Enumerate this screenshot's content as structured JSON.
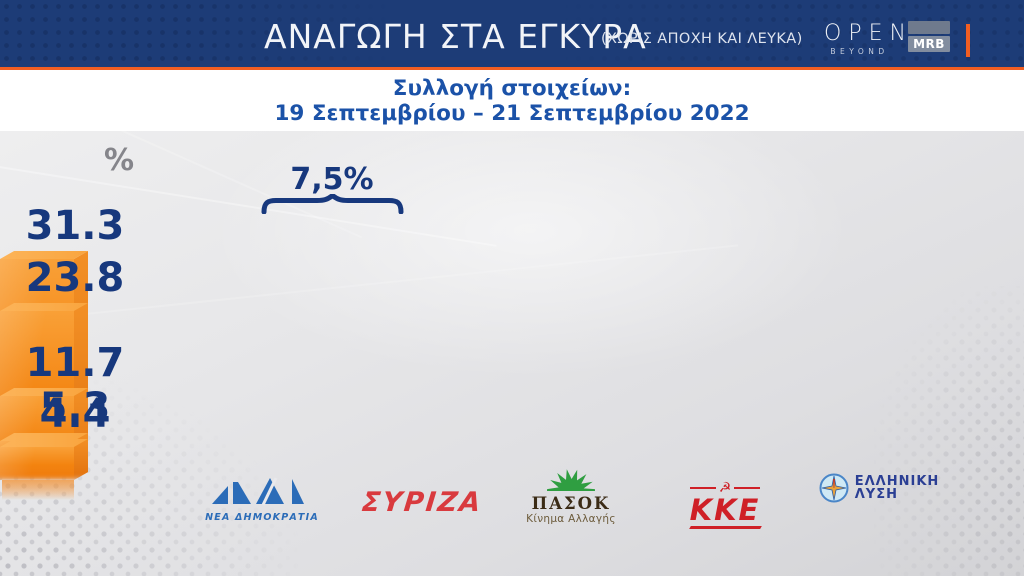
{
  "header": {
    "title": "ΑΝΑΓΩΓΗ ΣΤΑ ΕΓΚΥΡΑ",
    "note": "(ΧΩΡΙΣ ΑΠΟΧΗ ΚΑΙ ΛΕΥΚΑ)",
    "open_text": "OPEN",
    "open_tagline": "BEYOND",
    "mrb_text": "MRB"
  },
  "subtitle": {
    "line1": "Συλλογή στοιχείων:",
    "line2": "19 Σεπτεμβρίου – 21 Σεπτεμβρίου 2022"
  },
  "chart_data": {
    "type": "bar",
    "title": "ΑΝΑΓΩΓΗ ΣΤΑ ΕΓΚΥΡΑ (ΧΩΡΙΣ ΑΠΟΧΗ ΚΑΙ ΛΕΥΚΑ)",
    "unit_label": "%",
    "categories": [
      "ΝΕΑ ΔΗΜΟΚΡΑΤΙΑ",
      "ΣΥΡΙΖΑ",
      "ΠΑΣΟΚ Κίνημα Αλλαγής",
      "ΚΚΕ",
      "ΕΛΛΗΝΙΚΗ ΛΥΣΗ"
    ],
    "values": [
      31.3,
      23.8,
      11.7,
      5.3,
      4.4
    ],
    "value_labels": [
      "31.3",
      "23.8",
      "11.7",
      "5.3",
      "4.4"
    ],
    "annotation": {
      "label": "7,5%"
    },
    "bar_color": "#f3830f",
    "value_color": "#17387d",
    "grid": false,
    "legend": false
  },
  "parties": [
    {
      "logo_sub": "ΝΕΑ ΔΗΜΟΚΡΑΤΙΑ"
    },
    {
      "logo_main": "ΣΥΡΙΖΑ"
    },
    {
      "logo_main": "ΠΑΣΟΚ",
      "logo_sub": "Κίνημα Αλλαγής"
    },
    {
      "logo_main": "ΚΚΕ",
      "logo_symbol": "☭"
    },
    {
      "logo_line1": "ΕΛΛΗΝΙΚΗ",
      "logo_line2": "ΛΥΣΗ"
    }
  ]
}
